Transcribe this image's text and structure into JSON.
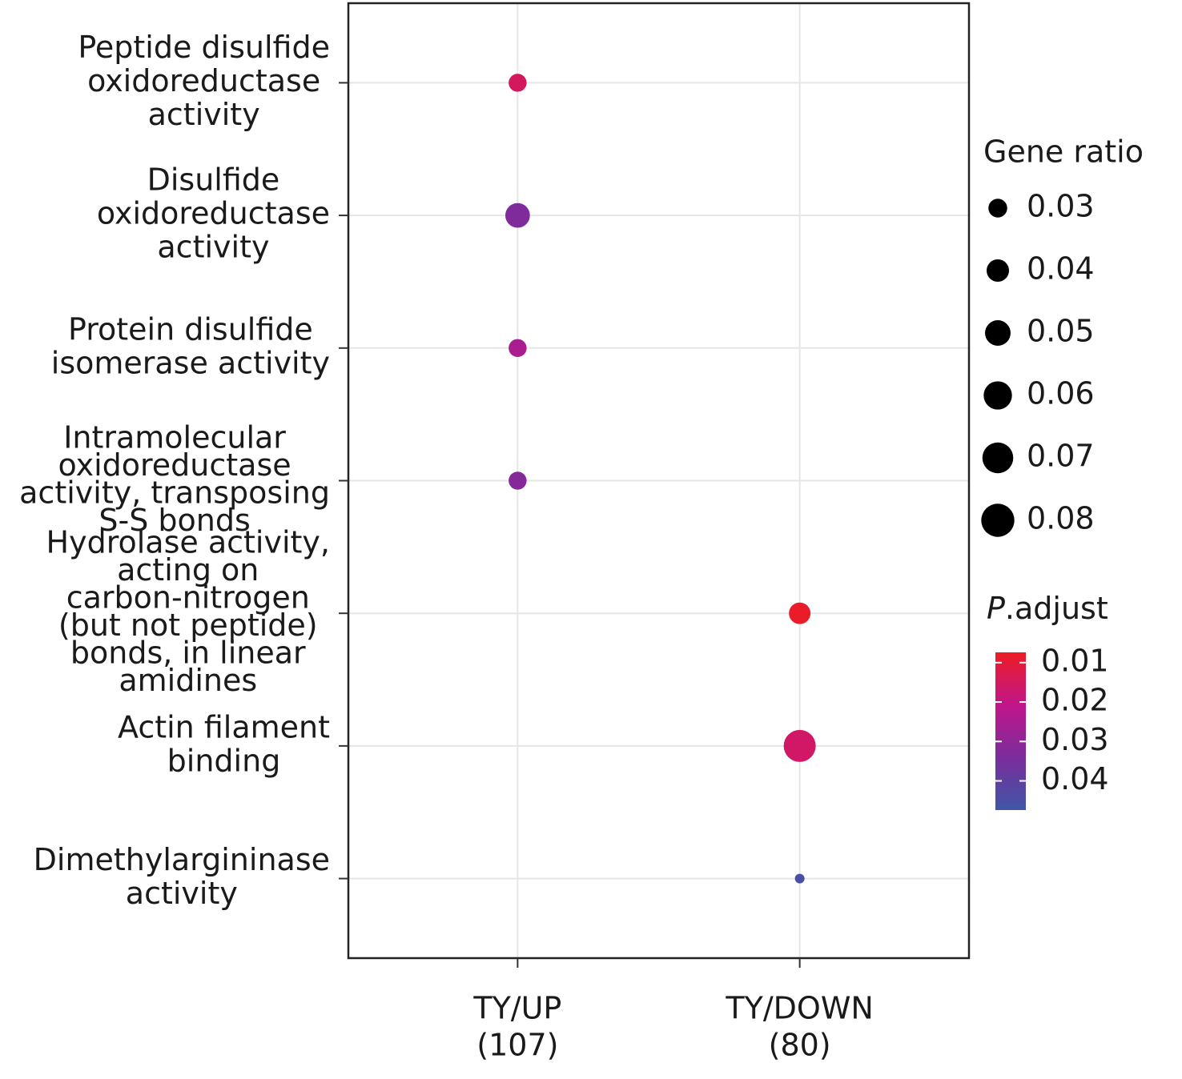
{
  "chart_data": {
    "type": "dot",
    "categories": [
      [
        "Peptide disulfide",
        "oxidoreductase",
        "activity"
      ],
      [
        "Disulfide",
        "oxidoreductase",
        "activity"
      ],
      [
        "Protein disulfide",
        "isomerase activity"
      ],
      [
        "Intramolecular",
        "oxidoreductase",
        "activity, transposing",
        "S-S bonds"
      ],
      [
        "Hydrolase activity,",
        "acting on",
        "carbon-nitrogen",
        "(but not peptide)",
        "bonds, in linear",
        "amidines"
      ],
      [
        "Actin filament",
        "binding"
      ],
      [
        "Dimethylargininase",
        "activity"
      ]
    ],
    "series": [
      {
        "name": [
          "TY/UP",
          "(107)"
        ],
        "gene_ratio": [
          0.028,
          0.047,
          0.028,
          0.028,
          null,
          null,
          null
        ],
        "p_adjust": [
          0.015,
          0.033,
          0.025,
          0.032,
          null,
          null,
          null
        ]
      },
      {
        "name": [
          "TY/DOWN",
          "(80)"
        ],
        "gene_ratio": [
          null,
          null,
          null,
          null,
          0.0375,
          0.075,
          0.0125
        ],
        "p_adjust": [
          null,
          null,
          null,
          null,
          0.008,
          0.016,
          0.045
        ]
      }
    ],
    "size_legend": {
      "title": "Gene ratio",
      "ticks": [
        0.03,
        0.04,
        0.05,
        0.06,
        0.07,
        0.08
      ]
    },
    "color_legend": {
      "title": [
        "P",
        ".adjust"
      ],
      "ticks": [
        0.01,
        0.02,
        0.03,
        0.04
      ],
      "lim": [
        0.0074,
        0.0474
      ],
      "colors": [
        "#ed1c24",
        "#c0168a",
        "#7a2d9c",
        "#3f56a6"
      ]
    },
    "grid": true
  }
}
